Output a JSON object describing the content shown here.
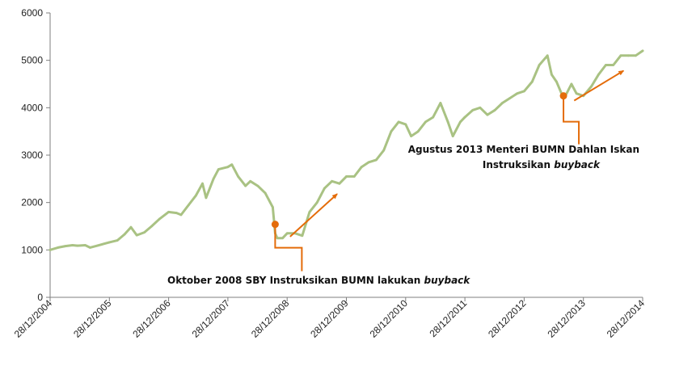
{
  "chart_data": {
    "type": "line",
    "title": "",
    "xlabel": "",
    "ylabel": "",
    "ylim": [
      0,
      6000
    ],
    "yticks": [
      0,
      1000,
      2000,
      3000,
      4000,
      5000,
      6000
    ],
    "xlim": [
      "2004-12-28",
      "2014-12-28"
    ],
    "xtick_labels": [
      "28/12/2004",
      "28/12/2005",
      "28/12/2006",
      "28/12/2007",
      "28/12/2008",
      "28/12/2009",
      "28/12/2010",
      "28/12/2011",
      "28/12/2012",
      "28/12/2013",
      "28/12/2014"
    ],
    "grid": false,
    "legend": "none",
    "line_color": "#a9c283",
    "accent_color": "#e46c0a",
    "series": [
      {
        "x": [
          "2004-12-28",
          "2005-02-15",
          "2005-04-01",
          "2005-05-15",
          "2005-06-15",
          "2005-08-01",
          "2005-08-31",
          "2005-10-15",
          "2005-12-28",
          "2006-02-15",
          "2006-04-01",
          "2006-05-10",
          "2006-06-15",
          "2006-08-01",
          "2006-09-15",
          "2006-11-01",
          "2006-12-28",
          "2007-02-15",
          "2007-03-15",
          "2007-05-01",
          "2007-06-15",
          "2007-07-25",
          "2007-08-16",
          "2007-10-01",
          "2007-11-01",
          "2007-12-28",
          "2008-01-22",
          "2008-03-01",
          "2008-04-15",
          "2008-05-15",
          "2008-06-30",
          "2008-08-15",
          "2008-09-30",
          "2008-10-15",
          "2008-10-28",
          "2008-11-30",
          "2008-12-28",
          "2009-02-15",
          "2009-03-31",
          "2009-05-15",
          "2009-06-30",
          "2009-08-15",
          "2009-09-30",
          "2009-11-15",
          "2009-12-28",
          "2010-02-15",
          "2010-03-31",
          "2010-05-15",
          "2010-06-30",
          "2010-08-15",
          "2010-09-30",
          "2010-11-15",
          "2010-12-28",
          "2011-01-31",
          "2011-03-15",
          "2011-04-30",
          "2011-06-15",
          "2011-07-31",
          "2011-09-15",
          "2011-10-15",
          "2011-11-30",
          "2011-12-28",
          "2012-02-15",
          "2012-03-31",
          "2012-05-15",
          "2012-06-30",
          "2012-08-15",
          "2012-09-30",
          "2012-11-15",
          "2012-12-28",
          "2013-02-15",
          "2013-03-31",
          "2013-05-20",
          "2013-06-15",
          "2013-07-15",
          "2013-08-27",
          "2013-09-15",
          "2013-10-15",
          "2013-11-15",
          "2013-12-28",
          "2014-02-15",
          "2014-03-31",
          "2014-05-15",
          "2014-06-30",
          "2014-08-15",
          "2014-09-30",
          "2014-11-15",
          "2014-12-28"
        ],
        "values": [
          1000,
          1050,
          1080,
          1100,
          1090,
          1100,
          1050,
          1090,
          1160,
          1200,
          1330,
          1480,
          1310,
          1370,
          1500,
          1650,
          1800,
          1780,
          1740,
          1950,
          2150,
          2400,
          2100,
          2500,
          2700,
          2750,
          2800,
          2550,
          2350,
          2450,
          2350,
          2200,
          1900,
          1350,
          1250,
          1250,
          1350,
          1350,
          1300,
          1800,
          2000,
          2300,
          2450,
          2400,
          2550,
          2550,
          2750,
          2850,
          2900,
          3100,
          3500,
          3700,
          3650,
          3400,
          3500,
          3700,
          3800,
          4100,
          3700,
          3400,
          3700,
          3800,
          3950,
          4000,
          3850,
          3950,
          4100,
          4200,
          4300,
          4350,
          4550,
          4900,
          5100,
          4700,
          4550,
          4200,
          4300,
          4500,
          4300,
          4250,
          4450,
          4700,
          4900,
          4900,
          5100,
          5100,
          5100,
          5200
        ]
      }
    ],
    "markers": [
      {
        "date": "2008-10-15",
        "value": 1540
      },
      {
        "date": "2013-08-27",
        "value": 4250
      }
    ],
    "trend_arrows": [
      {
        "from": [
          "2009-01-15",
          1280
        ],
        "to": [
          "2009-11-01",
          2180
        ]
      },
      {
        "from": [
          "2013-11-01",
          4150
        ],
        "to": [
          "2014-09-01",
          4780
        ]
      }
    ],
    "annotations": [
      {
        "date": "2008-10-15",
        "value": 1540,
        "label_lines": [
          {
            "text": "Oktober 2008  SBY Instruksikan BUMN lakukan ",
            "emph": "buyback"
          }
        ]
      },
      {
        "date": "2013-08-27",
        "value": 4250,
        "label_lines": [
          {
            "text": "Agustus 2013  Menteri BUMN Dahlan Iskan",
            "emph": ""
          },
          {
            "text": "Instruksikan ",
            "emph": "buyback"
          }
        ]
      }
    ]
  }
}
